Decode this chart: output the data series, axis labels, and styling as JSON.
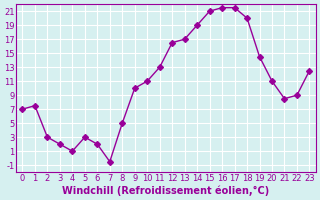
{
  "x": [
    0,
    1,
    2,
    3,
    4,
    5,
    6,
    7,
    8,
    9,
    10,
    11,
    12,
    13,
    14,
    15,
    16,
    17,
    18,
    19,
    20,
    21,
    22,
    23
  ],
  "y": [
    7,
    7.5,
    3,
    2,
    1,
    3,
    2,
    -0.5,
    5,
    10,
    11,
    13,
    16.5,
    17,
    19,
    21,
    21.5,
    21.5,
    20,
    14.5,
    11,
    8.5,
    9,
    12.5
  ],
  "line_color": "#990099",
  "marker": "D",
  "marker_size": 3,
  "background_color": "#d6f0f0",
  "grid_color": "#ffffff",
  "xlabel": "Windchill (Refroidissement éolien,°C)",
  "ylabel": "",
  "xlim": [
    -0.5,
    23.5
  ],
  "ylim": [
    -2,
    22
  ],
  "yticks": [
    -1,
    1,
    3,
    5,
    7,
    9,
    11,
    13,
    15,
    17,
    19,
    21
  ],
  "xticks": [
    0,
    1,
    2,
    3,
    4,
    5,
    6,
    7,
    8,
    9,
    10,
    11,
    12,
    13,
    14,
    15,
    16,
    17,
    18,
    19,
    20,
    21,
    22,
    23
  ],
  "title_fontsize": 7,
  "label_fontsize": 7,
  "tick_fontsize": 6
}
